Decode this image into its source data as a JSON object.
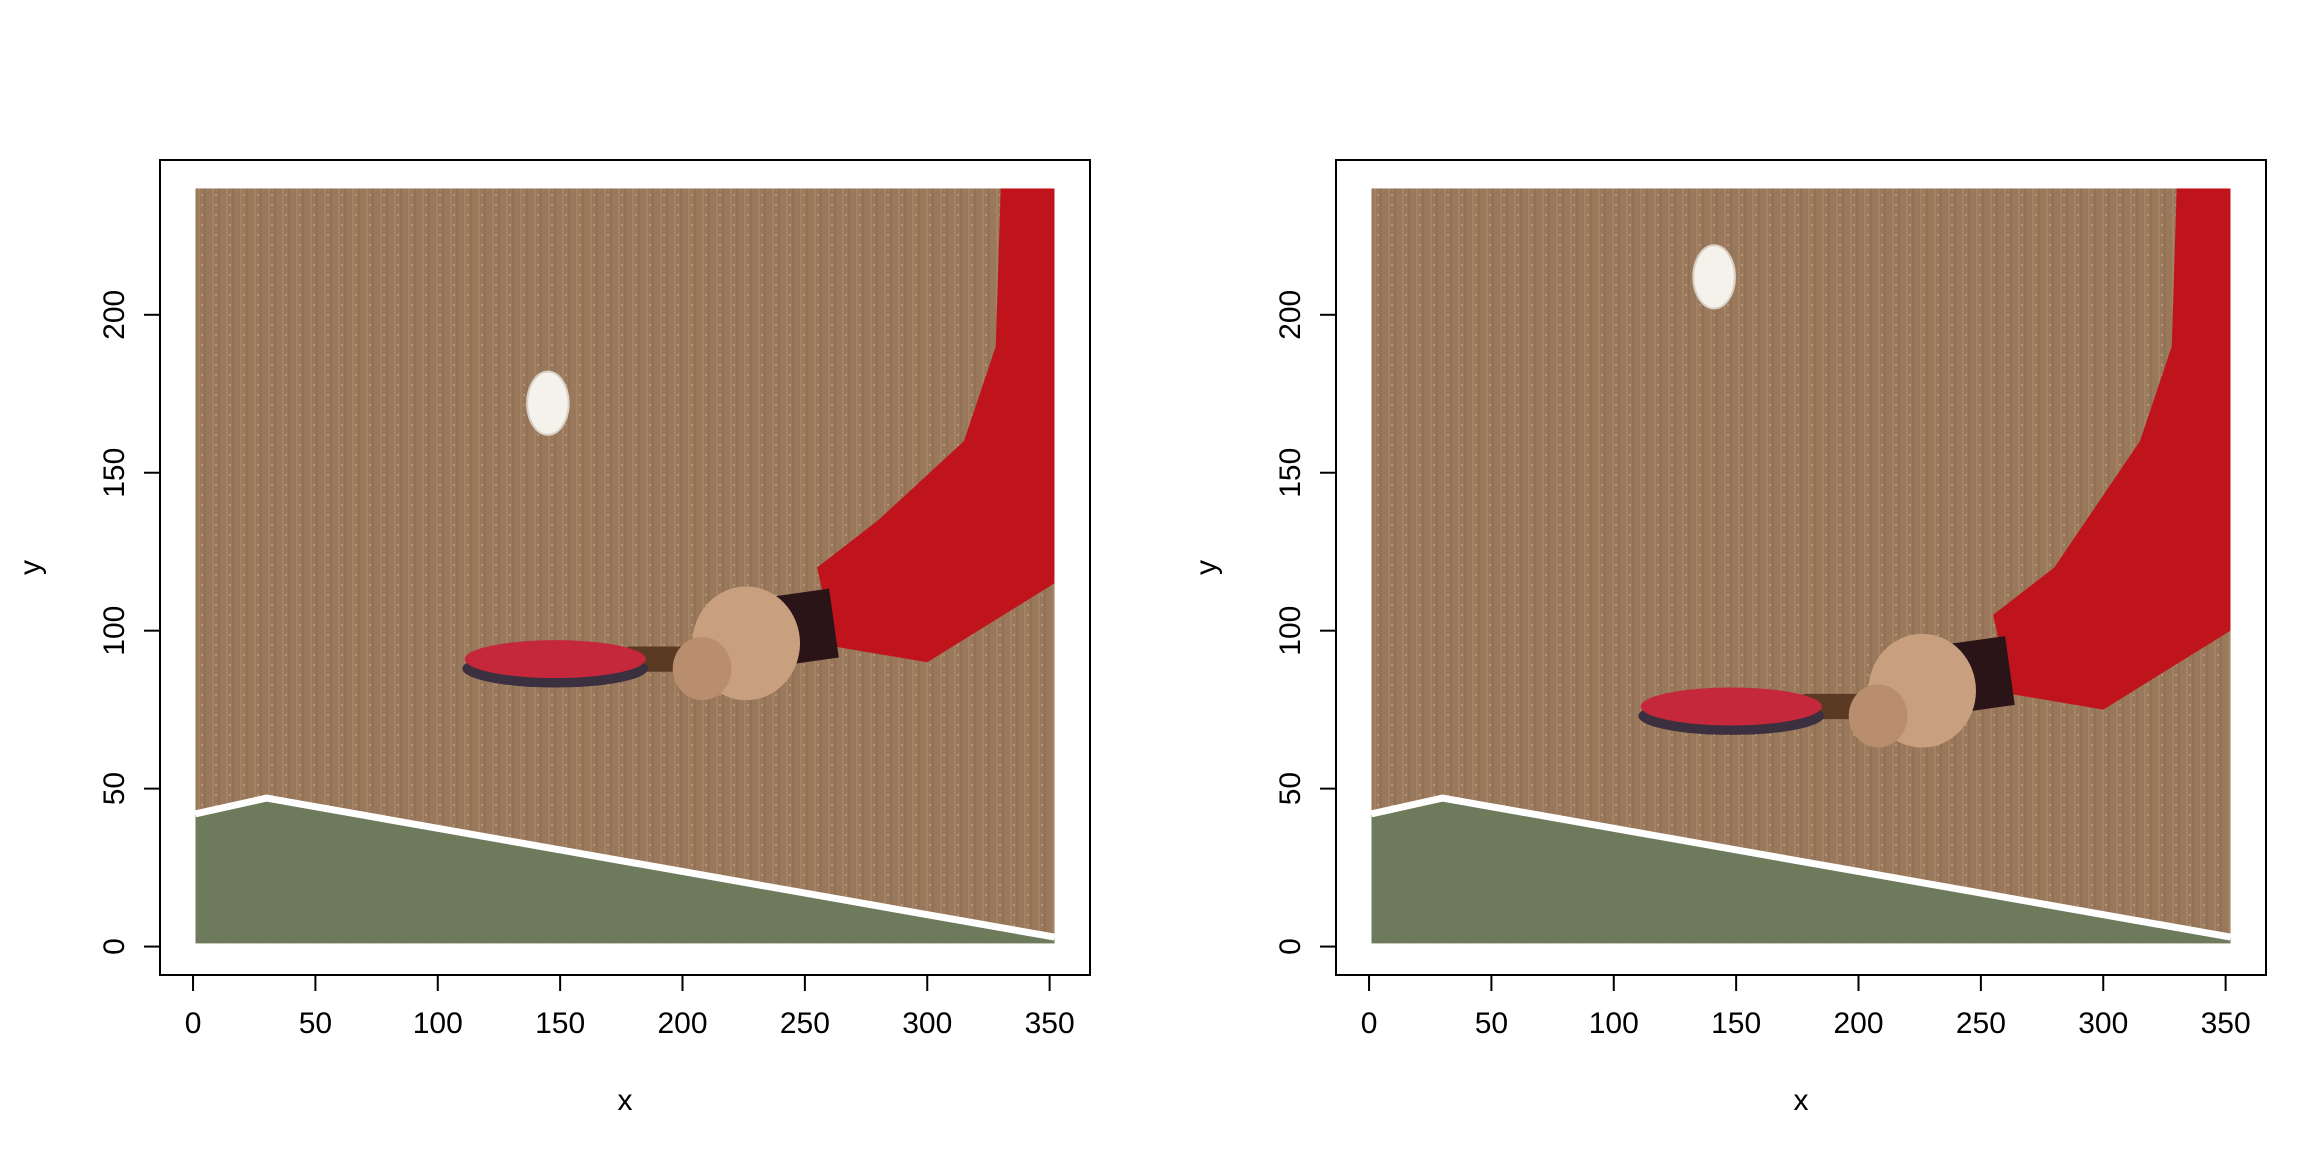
{
  "chart_data": [
    {
      "type": "image",
      "panel": "left",
      "xlabel": "x",
      "ylabel": "y",
      "xlim": [
        -13.5,
        366.5
      ],
      "ylim": [
        -9,
        249
      ],
      "x_ticks": [
        0,
        50,
        100,
        150,
        200,
        250,
        300,
        350
      ],
      "y_ticks": [
        0,
        50,
        100,
        150,
        200
      ],
      "image_extent": {
        "x": [
          1,
          352
        ],
        "y": [
          1,
          240
        ]
      },
      "scene": {
        "ball": [
          145,
          172
        ],
        "paddle_head": [
          148,
          91
        ],
        "hand": [
          230,
          100
        ],
        "table_corner": [
          30,
          47
        ]
      },
      "colors": {
        "background": "#9c7a5c",
        "table": "#6e7a5c",
        "sleeve": "#c0141c",
        "paddle": "#c4283a",
        "ball": "#f4f2ea"
      }
    },
    {
      "type": "image",
      "panel": "right",
      "xlabel": "x",
      "ylabel": "y",
      "xlim": [
        -13.5,
        366.5
      ],
      "ylim": [
        -9,
        249
      ],
      "x_ticks": [
        0,
        50,
        100,
        150,
        200,
        250,
        300,
        350
      ],
      "y_ticks": [
        0,
        50,
        100,
        150,
        200
      ],
      "image_extent": {
        "x": [
          1,
          352
        ],
        "y": [
          1,
          240
        ]
      },
      "scene": {
        "ball": [
          141,
          212
        ],
        "paddle_head": [
          148,
          76
        ],
        "hand": [
          230,
          85
        ],
        "table_corner": [
          30,
          47
        ]
      },
      "colors": {
        "background": "#9c7a5c",
        "table": "#6e7a5c",
        "sleeve": "#c0141c",
        "paddle": "#c4283a",
        "ball": "#f4f2ea"
      }
    }
  ]
}
